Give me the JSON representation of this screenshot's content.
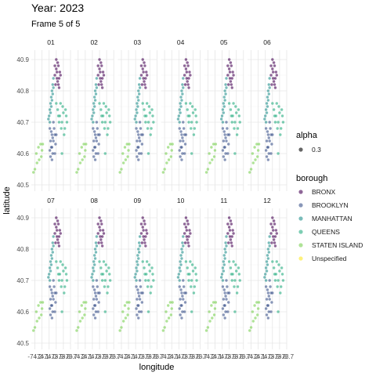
{
  "chart_data": {
    "type": "scatter",
    "title": "Year: 2023",
    "subtitle": "Frame 5 of 5",
    "xlabel": "longitude",
    "ylabel": "latitude",
    "facets": [
      "01",
      "02",
      "03",
      "04",
      "05",
      "06",
      "07",
      "08",
      "09",
      "10",
      "11",
      "12"
    ],
    "facet_layout": {
      "rows": 2,
      "cols": 6
    },
    "xlim": [
      -74.25,
      -73.7
    ],
    "ylim": [
      40.48,
      40.93
    ],
    "x_ticks": [
      "-74.2",
      "-74.1",
      "-74.0",
      "-73.9",
      "-73.8",
      "-73.7"
    ],
    "x_tick_values": [
      -74.2,
      -74.1,
      -74.0,
      -73.9,
      -73.8,
      -73.7
    ],
    "y_ticks": [
      "40.5",
      "40.6",
      "40.7",
      "40.8",
      "40.9"
    ],
    "y_tick_values": [
      40.5,
      40.6,
      40.7,
      40.8,
      40.9
    ],
    "grid": true,
    "point_alpha": 0.3,
    "legend_alpha": {
      "title": "alpha",
      "label": "0.3"
    },
    "legend_borough": {
      "title": "borough",
      "entries": [
        {
          "name": "BRONX",
          "color": "#440154"
        },
        {
          "name": "BROOKLYN",
          "color": "#3B528B"
        },
        {
          "name": "MANHATTAN",
          "color": "#21908C"
        },
        {
          "name": "QUEENS",
          "color": "#27AD81"
        },
        {
          "name": "STATEN ISLAND",
          "color": "#7AD151"
        },
        {
          "name": "Unspecified",
          "color": "#FDE725"
        }
      ]
    },
    "legend_position": "right",
    "series": [
      {
        "name": "BRONX",
        "color": "#440154",
        "points": [
          [
            -73.92,
            40.85
          ],
          [
            -73.9,
            40.87
          ],
          [
            -73.88,
            40.89
          ],
          [
            -73.86,
            40.84
          ],
          [
            -73.91,
            40.82
          ],
          [
            -73.89,
            40.86
          ],
          [
            -73.87,
            40.88
          ],
          [
            -73.85,
            40.86
          ],
          [
            -73.9,
            40.9
          ],
          [
            -73.88,
            40.83
          ],
          [
            -73.86,
            40.81
          ],
          [
            -73.84,
            40.85
          ],
          [
            -73.92,
            40.88
          ],
          [
            -73.89,
            40.84
          ],
          [
            -73.87,
            40.82
          ]
        ]
      },
      {
        "name": "BROOKLYN",
        "color": "#3B528B",
        "points": [
          [
            -73.99,
            40.68
          ],
          [
            -73.96,
            40.66
          ],
          [
            -73.94,
            40.64
          ],
          [
            -73.97,
            40.62
          ],
          [
            -73.92,
            40.66
          ],
          [
            -73.95,
            40.6
          ],
          [
            -73.98,
            40.64
          ],
          [
            -73.93,
            40.68
          ],
          [
            -73.96,
            40.58
          ],
          [
            -73.91,
            40.63
          ],
          [
            -73.99,
            40.61
          ],
          [
            -73.94,
            40.7
          ],
          [
            -73.97,
            40.67
          ],
          [
            -73.92,
            40.6
          ],
          [
            -73.95,
            40.65
          ],
          [
            -73.98,
            40.59
          ],
          [
            -73.9,
            40.66
          ],
          [
            -73.96,
            40.62
          ]
        ]
      },
      {
        "name": "MANHATTAN",
        "color": "#21908C",
        "points": [
          [
            -73.99,
            40.74
          ],
          [
            -73.98,
            40.76
          ],
          [
            -73.97,
            40.78
          ],
          [
            -73.96,
            40.8
          ],
          [
            -73.95,
            40.82
          ],
          [
            -73.94,
            40.84
          ],
          [
            -74.0,
            40.72
          ],
          [
            -73.98,
            40.73
          ],
          [
            -73.96,
            40.77
          ],
          [
            -73.95,
            40.79
          ],
          [
            -74.01,
            40.71
          ],
          [
            -73.97,
            40.75
          ],
          [
            -73.94,
            40.81
          ],
          [
            -73.99,
            40.7
          ]
        ]
      },
      {
        "name": "QUEENS",
        "color": "#27AD81",
        "points": [
          [
            -73.88,
            40.74
          ],
          [
            -73.85,
            40.72
          ],
          [
            -73.82,
            40.7
          ],
          [
            -73.8,
            40.73
          ],
          [
            -73.78,
            40.68
          ],
          [
            -73.84,
            40.76
          ],
          [
            -73.76,
            40.72
          ],
          [
            -73.86,
            40.7
          ],
          [
            -73.81,
            40.75
          ],
          [
            -73.79,
            40.66
          ],
          [
            -73.83,
            40.68
          ],
          [
            -73.87,
            40.72
          ],
          [
            -73.77,
            40.74
          ],
          [
            -73.82,
            40.6
          ],
          [
            -73.75,
            40.7
          ],
          [
            -73.9,
            40.76
          ]
        ]
      },
      {
        "name": "STATEN ISLAND",
        "color": "#7AD151",
        "points": [
          [
            -74.15,
            40.62
          ],
          [
            -74.12,
            40.63
          ],
          [
            -74.1,
            40.61
          ],
          [
            -74.18,
            40.6
          ],
          [
            -74.14,
            40.58
          ],
          [
            -74.2,
            40.55
          ],
          [
            -74.17,
            40.57
          ],
          [
            -74.09,
            40.63
          ],
          [
            -74.22,
            40.54
          ],
          [
            -74.11,
            40.59
          ]
        ]
      }
    ]
  }
}
